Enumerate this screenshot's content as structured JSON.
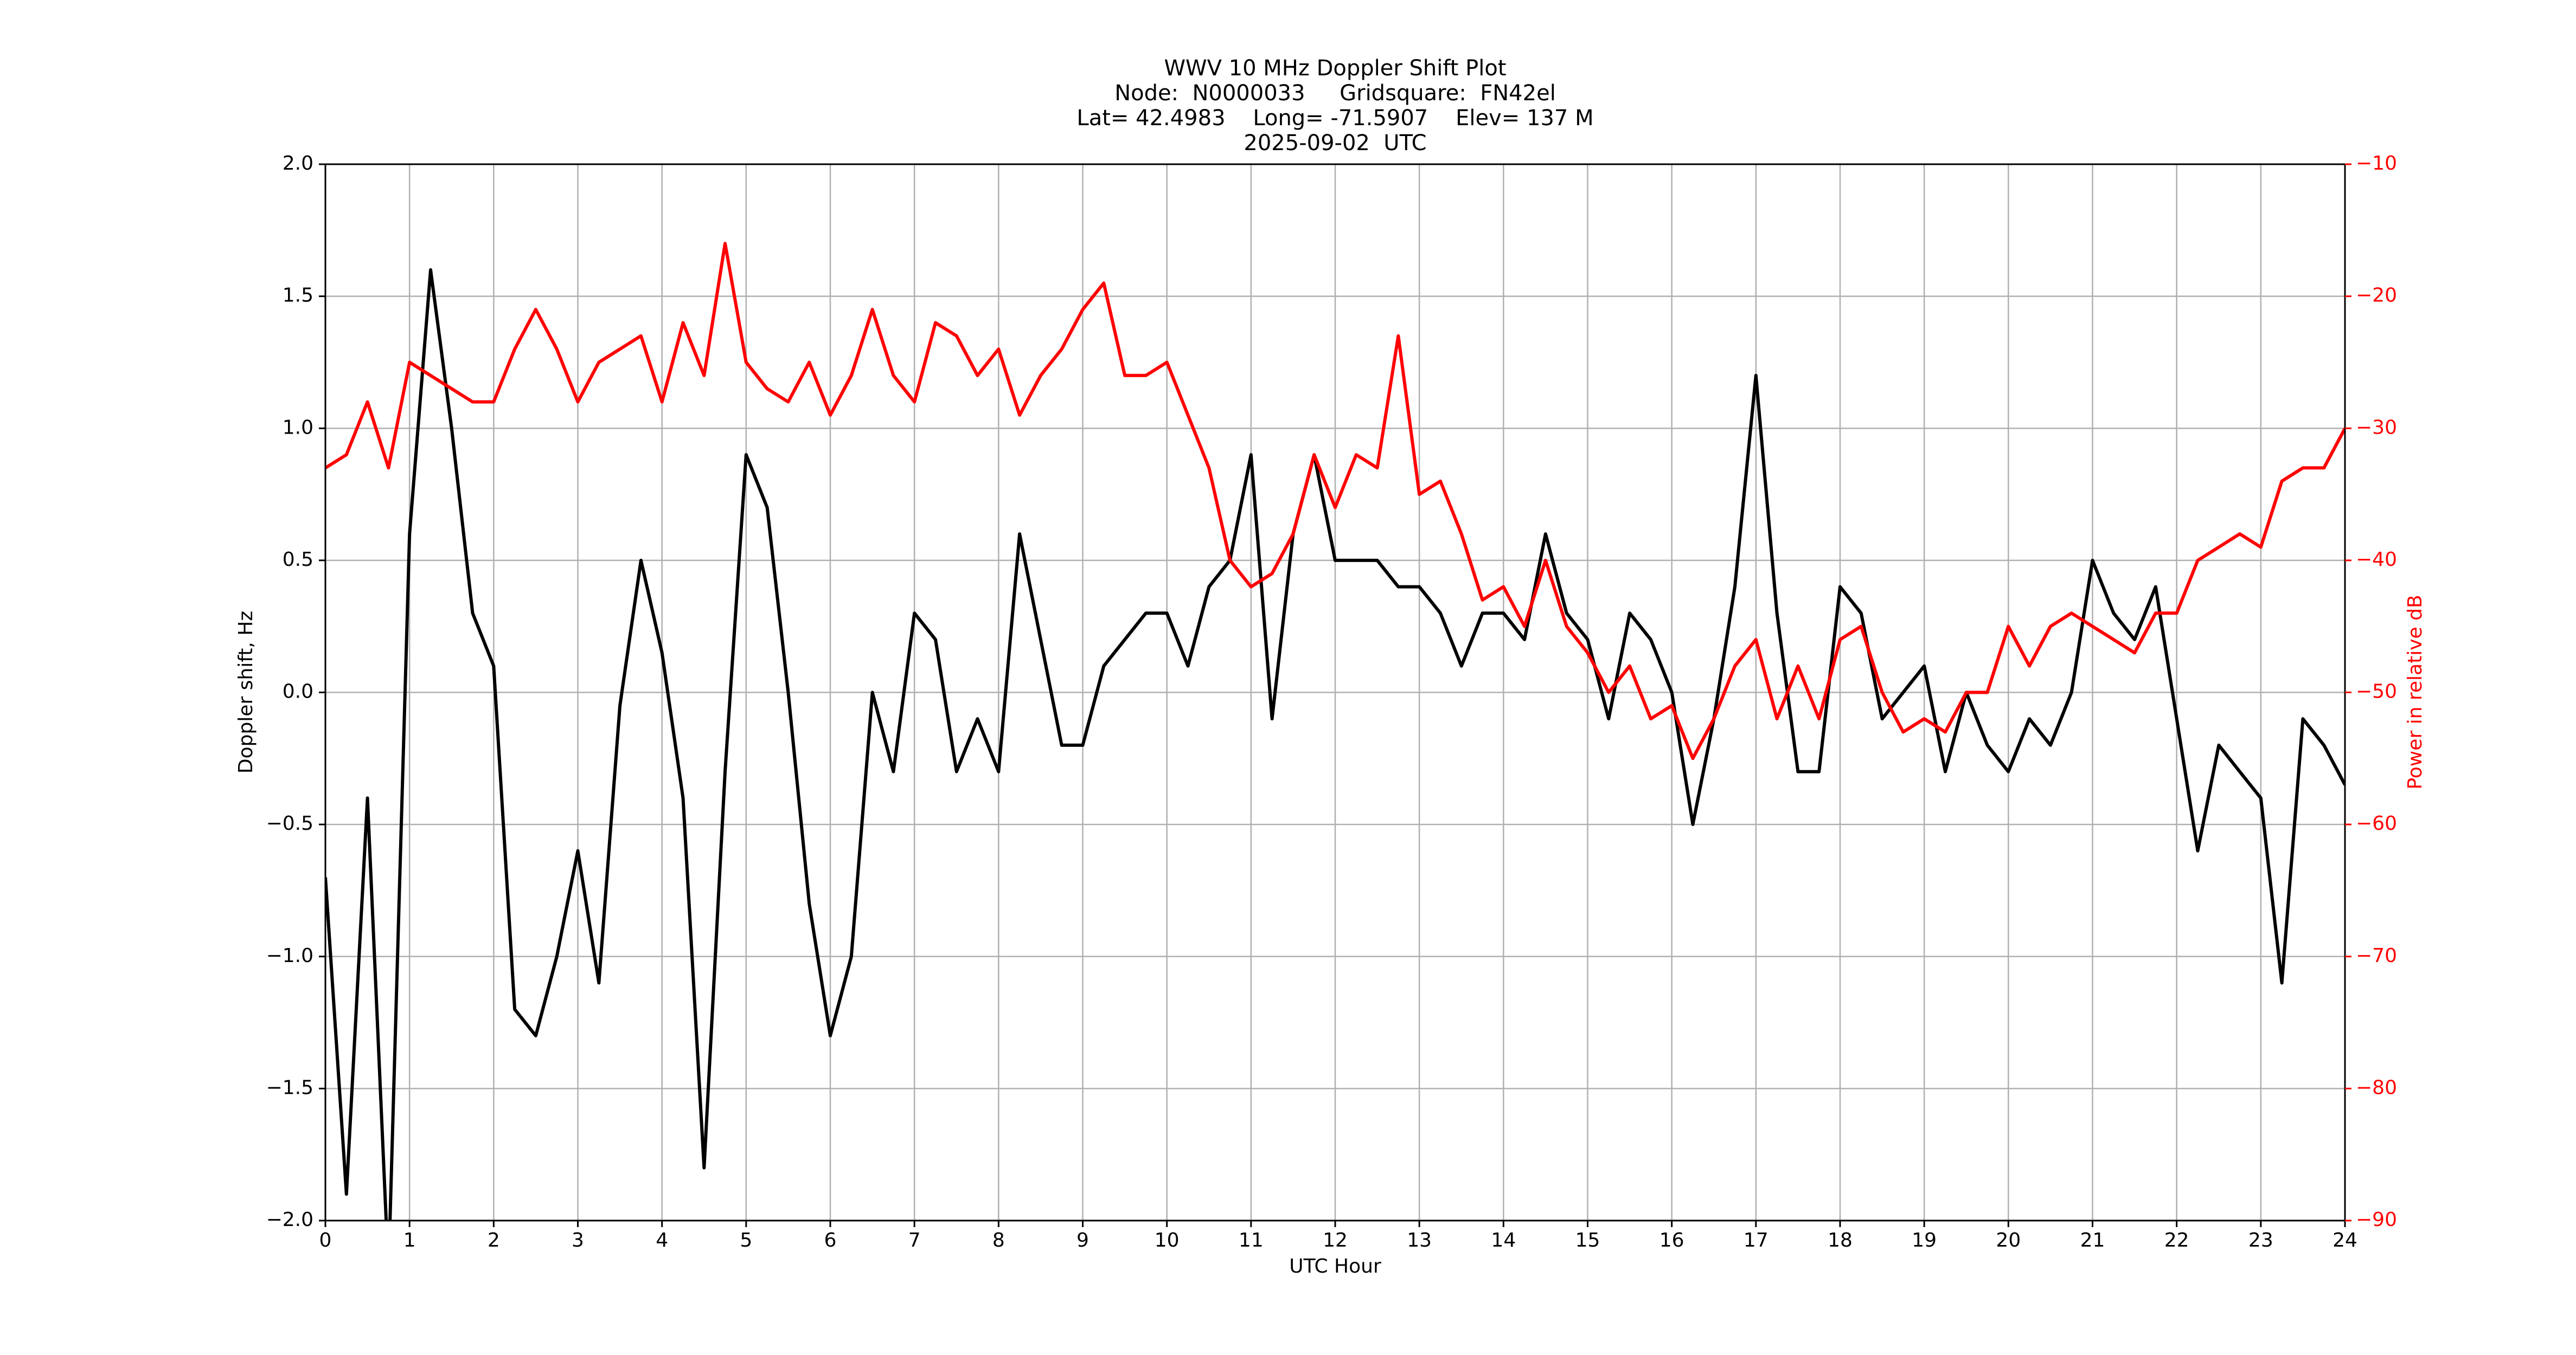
{
  "chart_data": {
    "type": "line",
    "title": [
      "WWV 10 MHz Doppler Shift Plot",
      "Node:  N0000033     Gridsquare:  FN42el",
      "Lat= 42.4983    Long= -71.5907    Elev= 137 M",
      "2025-09-02  UTC"
    ],
    "xlabel": "UTC Hour",
    "ylabel": "Doppler shift, Hz",
    "y2label": "Power in relative dB",
    "grid": true,
    "xlim": [
      0,
      24
    ],
    "xticks": [
      0,
      1,
      2,
      3,
      4,
      5,
      6,
      7,
      8,
      9,
      10,
      11,
      12,
      13,
      14,
      15,
      16,
      17,
      18,
      19,
      20,
      21,
      22,
      23,
      24
    ],
    "ylim": [
      -2,
      2
    ],
    "yticks": [
      {
        "value": -2,
        "label": "−2.0"
      },
      {
        "value": -1.5,
        "label": "−1.5"
      },
      {
        "value": -1,
        "label": "−1.0"
      },
      {
        "value": -0.5,
        "label": "−0.5"
      },
      {
        "value": 0,
        "label": "0.0"
      },
      {
        "value": 0.5,
        "label": "0.5"
      },
      {
        "value": 1,
        "label": "1.0"
      },
      {
        "value": 1.5,
        "label": "1.5"
      },
      {
        "value": 2,
        "label": "2.0"
      }
    ],
    "y2lim": [
      -90,
      -10
    ],
    "y2ticks": [
      {
        "value": -90,
        "label": "−90"
      },
      {
        "value": -80,
        "label": "−80"
      },
      {
        "value": -70,
        "label": "−70"
      },
      {
        "value": -60,
        "label": "−60"
      },
      {
        "value": -50,
        "label": "−50"
      },
      {
        "value": -40,
        "label": "−40"
      },
      {
        "value": -30,
        "label": "−30"
      },
      {
        "value": -20,
        "label": "−20"
      },
      {
        "value": -10,
        "label": "−10"
      }
    ],
    "x": [
      0,
      0.25,
      0.5,
      0.75,
      1,
      1.25,
      1.5,
      1.75,
      2,
      2.25,
      2.5,
      2.75,
      3,
      3.25,
      3.5,
      3.75,
      4,
      4.25,
      4.5,
      4.75,
      5,
      5.25,
      5.5,
      5.75,
      6,
      6.25,
      6.5,
      6.75,
      7,
      7.25,
      7.5,
      7.75,
      8,
      8.25,
      8.5,
      8.75,
      9,
      9.25,
      9.5,
      9.75,
      10,
      10.25,
      10.5,
      10.75,
      11,
      11.25,
      11.5,
      11.75,
      12,
      12.25,
      12.5,
      12.75,
      13,
      13.25,
      13.5,
      13.75,
      14,
      14.25,
      14.5,
      14.75,
      15,
      15.25,
      15.5,
      15.75,
      16,
      16.25,
      16.5,
      16.75,
      17,
      17.25,
      17.5,
      17.75,
      18,
      18.25,
      18.5,
      18.75,
      19,
      19.25,
      19.5,
      19.75,
      20,
      20.25,
      20.5,
      20.75,
      21,
      21.25,
      21.5,
      21.75,
      22,
      22.25,
      22.5,
      22.75,
      23,
      23.25,
      23.5,
      23.75,
      24
    ],
    "series": [
      {
        "color": "#000000",
        "axis": "y",
        "values": [
          -0.7,
          -1.9,
          -0.4,
          -2.2,
          0.6,
          1.6,
          1.0,
          0.3,
          0.1,
          -1.2,
          -1.3,
          -1.0,
          -0.6,
          -1.1,
          -0.05,
          0.5,
          0.15,
          -0.4,
          -1.8,
          -0.3,
          0.9,
          0.7,
          0.0,
          -0.8,
          -1.3,
          -1.0,
          0.0,
          -0.3,
          0.3,
          0.2,
          -0.3,
          -0.1,
          -0.3,
          0.6,
          0.2,
          -0.2,
          -0.2,
          0.1,
          0.2,
          0.3,
          0.3,
          0.1,
          0.4,
          0.5,
          0.9,
          -0.1,
          0.6,
          0.9,
          0.5,
          0.5,
          0.5,
          0.4,
          0.4,
          0.3,
          0.1,
          0.3,
          0.3,
          0.2,
          0.6,
          0.3,
          0.2,
          -0.1,
          0.3,
          0.2,
          0.0,
          -0.5,
          -0.1,
          0.4,
          1.2,
          0.3,
          -0.3,
          -0.3,
          0.4,
          0.3,
          -0.1,
          0.0,
          0.1,
          -0.3,
          0.0,
          -0.2,
          -0.3,
          -0.1,
          -0.2,
          0.0,
          0.5,
          0.3,
          0.2,
          0.4,
          -0.1,
          -0.6,
          -0.2,
          -0.3,
          -0.4,
          -1.1,
          -0.1,
          -0.2,
          -0.35
        ]
      },
      {
        "color": "#ff0000",
        "axis": "y2",
        "values": [
          -33,
          -32,
          -28,
          -33,
          -25,
          -26,
          -27,
          -28,
          -28,
          -24,
          -21,
          -24,
          -28,
          -25,
          -24,
          -23,
          -28,
          -22,
          -26,
          -16,
          -25,
          -27,
          -28,
          -25,
          -29,
          -26,
          -21,
          -26,
          -28,
          -22,
          -23,
          -26,
          -24,
          -29,
          -26,
          -24,
          -21,
          -19,
          -26,
          -26,
          -25,
          -29,
          -33,
          -40,
          -42,
          -41,
          -38,
          -32,
          -36,
          -32,
          -33,
          -23,
          -35,
          -34,
          -38,
          -43,
          -42,
          -45,
          -40,
          -45,
          -47,
          -50,
          -48,
          -52,
          -51,
          -55,
          -52,
          -48,
          -46,
          -52,
          -48,
          -52,
          -46,
          -45,
          -50,
          -53,
          -52,
          -53,
          -50,
          -50,
          -45,
          -48,
          -45,
          -44,
          -45,
          -46,
          -47,
          -44,
          -44,
          -40,
          -39,
          -38,
          -39,
          -34,
          -33,
          -33,
          -30
        ]
      }
    ]
  }
}
